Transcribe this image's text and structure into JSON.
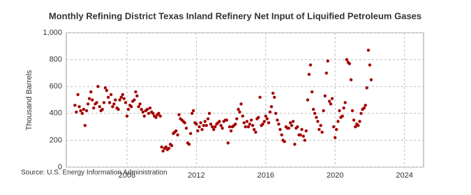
{
  "chart_data": {
    "type": "scatter",
    "title": "Monthly Refining District Texas Inland Refinery Net Input of Liquified Petroleum Gases",
    "y_label": "Thousand Barrels",
    "source": "Source: U.S. Energy Information Administration",
    "xlim": [
      2004.5,
      2025.1
    ],
    "xticks": [
      2008,
      2012,
      2016,
      2020,
      2024
    ],
    "ylim": [
      0,
      1000
    ],
    "yticks": [
      0,
      200,
      400,
      600,
      800,
      {
        "value": 1000,
        "label": "1,000"
      }
    ],
    "grid": true,
    "series": [
      {
        "color": "#a50000",
        "x": [
          2005.0,
          2005.08,
          2005.17,
          2005.25,
          2005.33,
          2005.42,
          2005.5,
          2005.58,
          2005.67,
          2005.75,
          2005.83,
          2005.92,
          2006.0,
          2006.08,
          2006.17,
          2006.25,
          2006.33,
          2006.42,
          2006.5,
          2006.58,
          2006.67,
          2006.75,
          2006.83,
          2006.92,
          2007.0,
          2007.08,
          2007.17,
          2007.25,
          2007.33,
          2007.42,
          2007.5,
          2007.58,
          2007.67,
          2007.75,
          2007.83,
          2007.92,
          2008.0,
          2008.08,
          2008.17,
          2008.25,
          2008.33,
          2008.42,
          2008.5,
          2008.58,
          2008.67,
          2008.75,
          2008.83,
          2008.92,
          2009.0,
          2009.08,
          2009.17,
          2009.25,
          2009.33,
          2009.42,
          2009.5,
          2009.58,
          2009.67,
          2009.75,
          2009.83,
          2009.92,
          2010.0,
          2010.08,
          2010.17,
          2010.25,
          2010.33,
          2010.42,
          2010.5,
          2010.58,
          2010.67,
          2010.75,
          2010.83,
          2010.92,
          2011.0,
          2011.08,
          2011.17,
          2011.25,
          2011.33,
          2011.42,
          2011.5,
          2011.58,
          2011.67,
          2011.75,
          2011.83,
          2011.92,
          2012.0,
          2012.08,
          2012.17,
          2012.25,
          2012.33,
          2012.42,
          2012.5,
          2012.58,
          2012.67,
          2012.75,
          2012.83,
          2012.92,
          2013.0,
          2013.08,
          2013.17,
          2013.25,
          2013.33,
          2013.42,
          2013.5,
          2013.58,
          2013.67,
          2013.75,
          2013.83,
          2013.92,
          2014.0,
          2014.08,
          2014.17,
          2014.25,
          2014.33,
          2014.42,
          2014.5,
          2014.58,
          2014.67,
          2014.75,
          2014.83,
          2014.92,
          2015.0,
          2015.08,
          2015.17,
          2015.25,
          2015.33,
          2015.42,
          2015.5,
          2015.58,
          2015.67,
          2015.75,
          2015.83,
          2015.92,
          2016.0,
          2016.08,
          2016.17,
          2016.25,
          2016.33,
          2016.42,
          2016.5,
          2016.58,
          2016.67,
          2016.75,
          2016.83,
          2016.92,
          2017.0,
          2017.08,
          2017.17,
          2017.25,
          2017.33,
          2017.42,
          2017.5,
          2017.58,
          2017.67,
          2017.75,
          2017.83,
          2017.92,
          2018.0,
          2018.08,
          2018.17,
          2018.25,
          2018.33,
          2018.42,
          2018.5,
          2018.58,
          2018.67,
          2018.75,
          2018.83,
          2018.92,
          2019.0,
          2019.08,
          2019.17,
          2019.25,
          2019.33,
          2019.42,
          2019.5,
          2019.58,
          2019.67,
          2019.75,
          2019.83,
          2019.92,
          2020.0,
          2020.08,
          2020.17,
          2020.25,
          2020.33,
          2020.42,
          2020.5,
          2020.58,
          2020.67,
          2020.75,
          2020.83,
          2020.92,
          2021.0,
          2021.08,
          2021.17,
          2021.25,
          2021.33,
          2021.42,
          2021.5,
          2021.58,
          2021.67,
          2021.75,
          2021.83,
          2021.92,
          2022.0,
          2022.08
        ],
        "values": [
          460,
          410,
          540,
          450,
          420,
          400,
          430,
          310,
          420,
          470,
          510,
          560,
          500,
          440,
          470,
          480,
          600,
          450,
          420,
          430,
          480,
          590,
          570,
          520,
          480,
          540,
          450,
          470,
          500,
          440,
          430,
          500,
          520,
          540,
          510,
          480,
          380,
          430,
          460,
          450,
          490,
          500,
          560,
          530,
          450,
          470,
          430,
          410,
          380,
          420,
          430,
          400,
          440,
          410,
          400,
          380,
          370,
          390,
          400,
          380,
          150,
          120,
          140,
          150,
          130,
          140,
          170,
          160,
          250,
          260,
          270,
          240,
          390,
          360,
          350,
          340,
          330,
          290,
          180,
          170,
          250,
          400,
          420,
          330,
          320,
          270,
          300,
          330,
          280,
          310,
          340,
          310,
          360,
          400,
          320,
          300,
          280,
          300,
          320,
          330,
          340,
          310,
          290,
          340,
          350,
          350,
          180,
          300,
          270,
          300,
          310,
          320,
          360,
          430,
          410,
          470,
          380,
          330,
          300,
          340,
          300,
          320,
          350,
          310,
          280,
          260,
          360,
          370,
          520,
          310,
          320,
          340,
          380,
          360,
          330,
          410,
          450,
          550,
          520,
          400,
          350,
          320,
          280,
          240,
          200,
          190,
          300,
          290,
          290,
          330,
          310,
          340,
          170,
          290,
          300,
          240,
          240,
          280,
          230,
          200,
          270,
          500,
          690,
          760,
          560,
          430,
          400,
          370,
          340,
          280,
          310,
          260,
          420,
          530,
          700,
          790,
          490,
          470,
          510,
          300,
          220,
          280,
          340,
          420,
          370,
          380,
          440,
          480,
          800,
          780,
          770,
          650,
          420,
          350,
          300,
          320,
          310,
          340,
          400,
          430,
          440,
          460,
          590,
          870,
          760,
          650
        ]
      }
    ]
  }
}
